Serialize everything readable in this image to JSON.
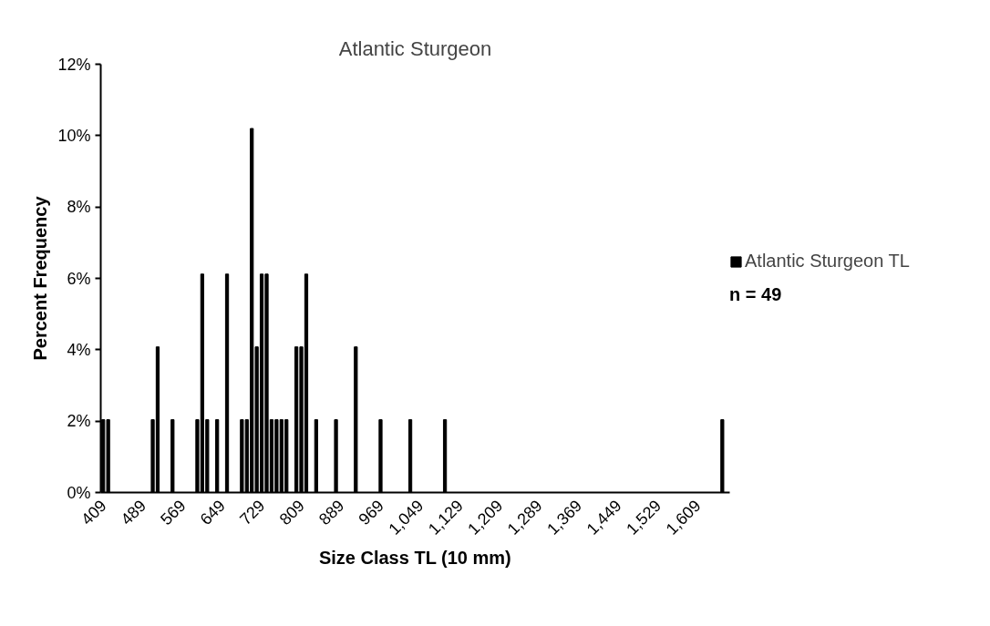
{
  "chart_data": {
    "type": "bar",
    "title": "Atlantic Sturgeon",
    "xlabel": "Size Class TL (10 mm)",
    "ylabel": "Percent Frequency",
    "categories": [
      "409",
      null,
      null,
      null,
      null,
      null,
      null,
      null,
      "489",
      null,
      null,
      null,
      null,
      null,
      null,
      null,
      "569",
      null,
      null,
      null,
      null,
      null,
      null,
      null,
      "649",
      null,
      null,
      null,
      null,
      null,
      null,
      null,
      "729",
      null,
      null,
      null,
      null,
      null,
      null,
      null,
      "809",
      null,
      null,
      null,
      null,
      null,
      null,
      null,
      "889",
      null,
      null,
      null,
      null,
      null,
      null,
      null,
      "969",
      null,
      null,
      null,
      null,
      null,
      null,
      null,
      "1,049",
      null,
      null,
      null,
      null,
      null,
      null,
      null,
      "1,129",
      null,
      null,
      null,
      null,
      null,
      null,
      null,
      "1,209",
      null,
      null,
      null,
      null,
      null,
      null,
      null,
      "1,289",
      null,
      null,
      null,
      null,
      null,
      null,
      null,
      "1,369",
      null,
      null,
      null,
      null,
      null,
      null,
      null,
      "1,449",
      null,
      null,
      null,
      null,
      null,
      null,
      null,
      "1,529",
      null,
      null,
      null,
      null,
      null,
      null,
      null,
      "1,609",
      null,
      null,
      null,
      null,
      null,
      null
    ],
    "series": [
      {
        "name": "Atlantic Sturgeon TL",
        "color": "#000000",
        "values": [
          2.04,
          2.04,
          0,
          0,
          0,
          0,
          0,
          0,
          0,
          0,
          2.04,
          4.08,
          0,
          0,
          2.04,
          0,
          0,
          0,
          0,
          2.04,
          6.12,
          2.04,
          0,
          2.04,
          0,
          6.12,
          0,
          0,
          2.04,
          2.04,
          10.2,
          4.08,
          6.12,
          6.12,
          2.04,
          2.04,
          2.04,
          2.04,
          0,
          4.08,
          4.08,
          6.12,
          0,
          2.04,
          0,
          0,
          0,
          2.04,
          0,
          0,
          0,
          4.08,
          0,
          0,
          0,
          0,
          2.04,
          0,
          0,
          0,
          0,
          0,
          2.04,
          0,
          0,
          0,
          0,
          0,
          0,
          2.04,
          0,
          0,
          0,
          0,
          0,
          0,
          0,
          0,
          0,
          0,
          0,
          0,
          0,
          0,
          0,
          0,
          0,
          0,
          0,
          0,
          0,
          0,
          0,
          0,
          0,
          0,
          0,
          0,
          0,
          0,
          0,
          0,
          0,
          0,
          0,
          0,
          0,
          0,
          0,
          0,
          0,
          0,
          0,
          0,
          0,
          0,
          0,
          0,
          0,
          0,
          0,
          0,
          0,
          0,
          0,
          2.04,
          0
        ]
      }
    ],
    "ylim": [
      0,
      12
    ],
    "yticks": [
      {
        "value": 0,
        "label": "0%"
      },
      {
        "value": 2,
        "label": "2%"
      },
      {
        "value": 4,
        "label": "4%"
      },
      {
        "value": 6,
        "label": "6%"
      },
      {
        "value": 8,
        "label": "8%"
      },
      {
        "value": 10,
        "label": "10%"
      },
      {
        "value": 12,
        "label": "12%"
      }
    ],
    "grid": false,
    "legend": "right",
    "annotations": [
      "n = 49"
    ]
  }
}
